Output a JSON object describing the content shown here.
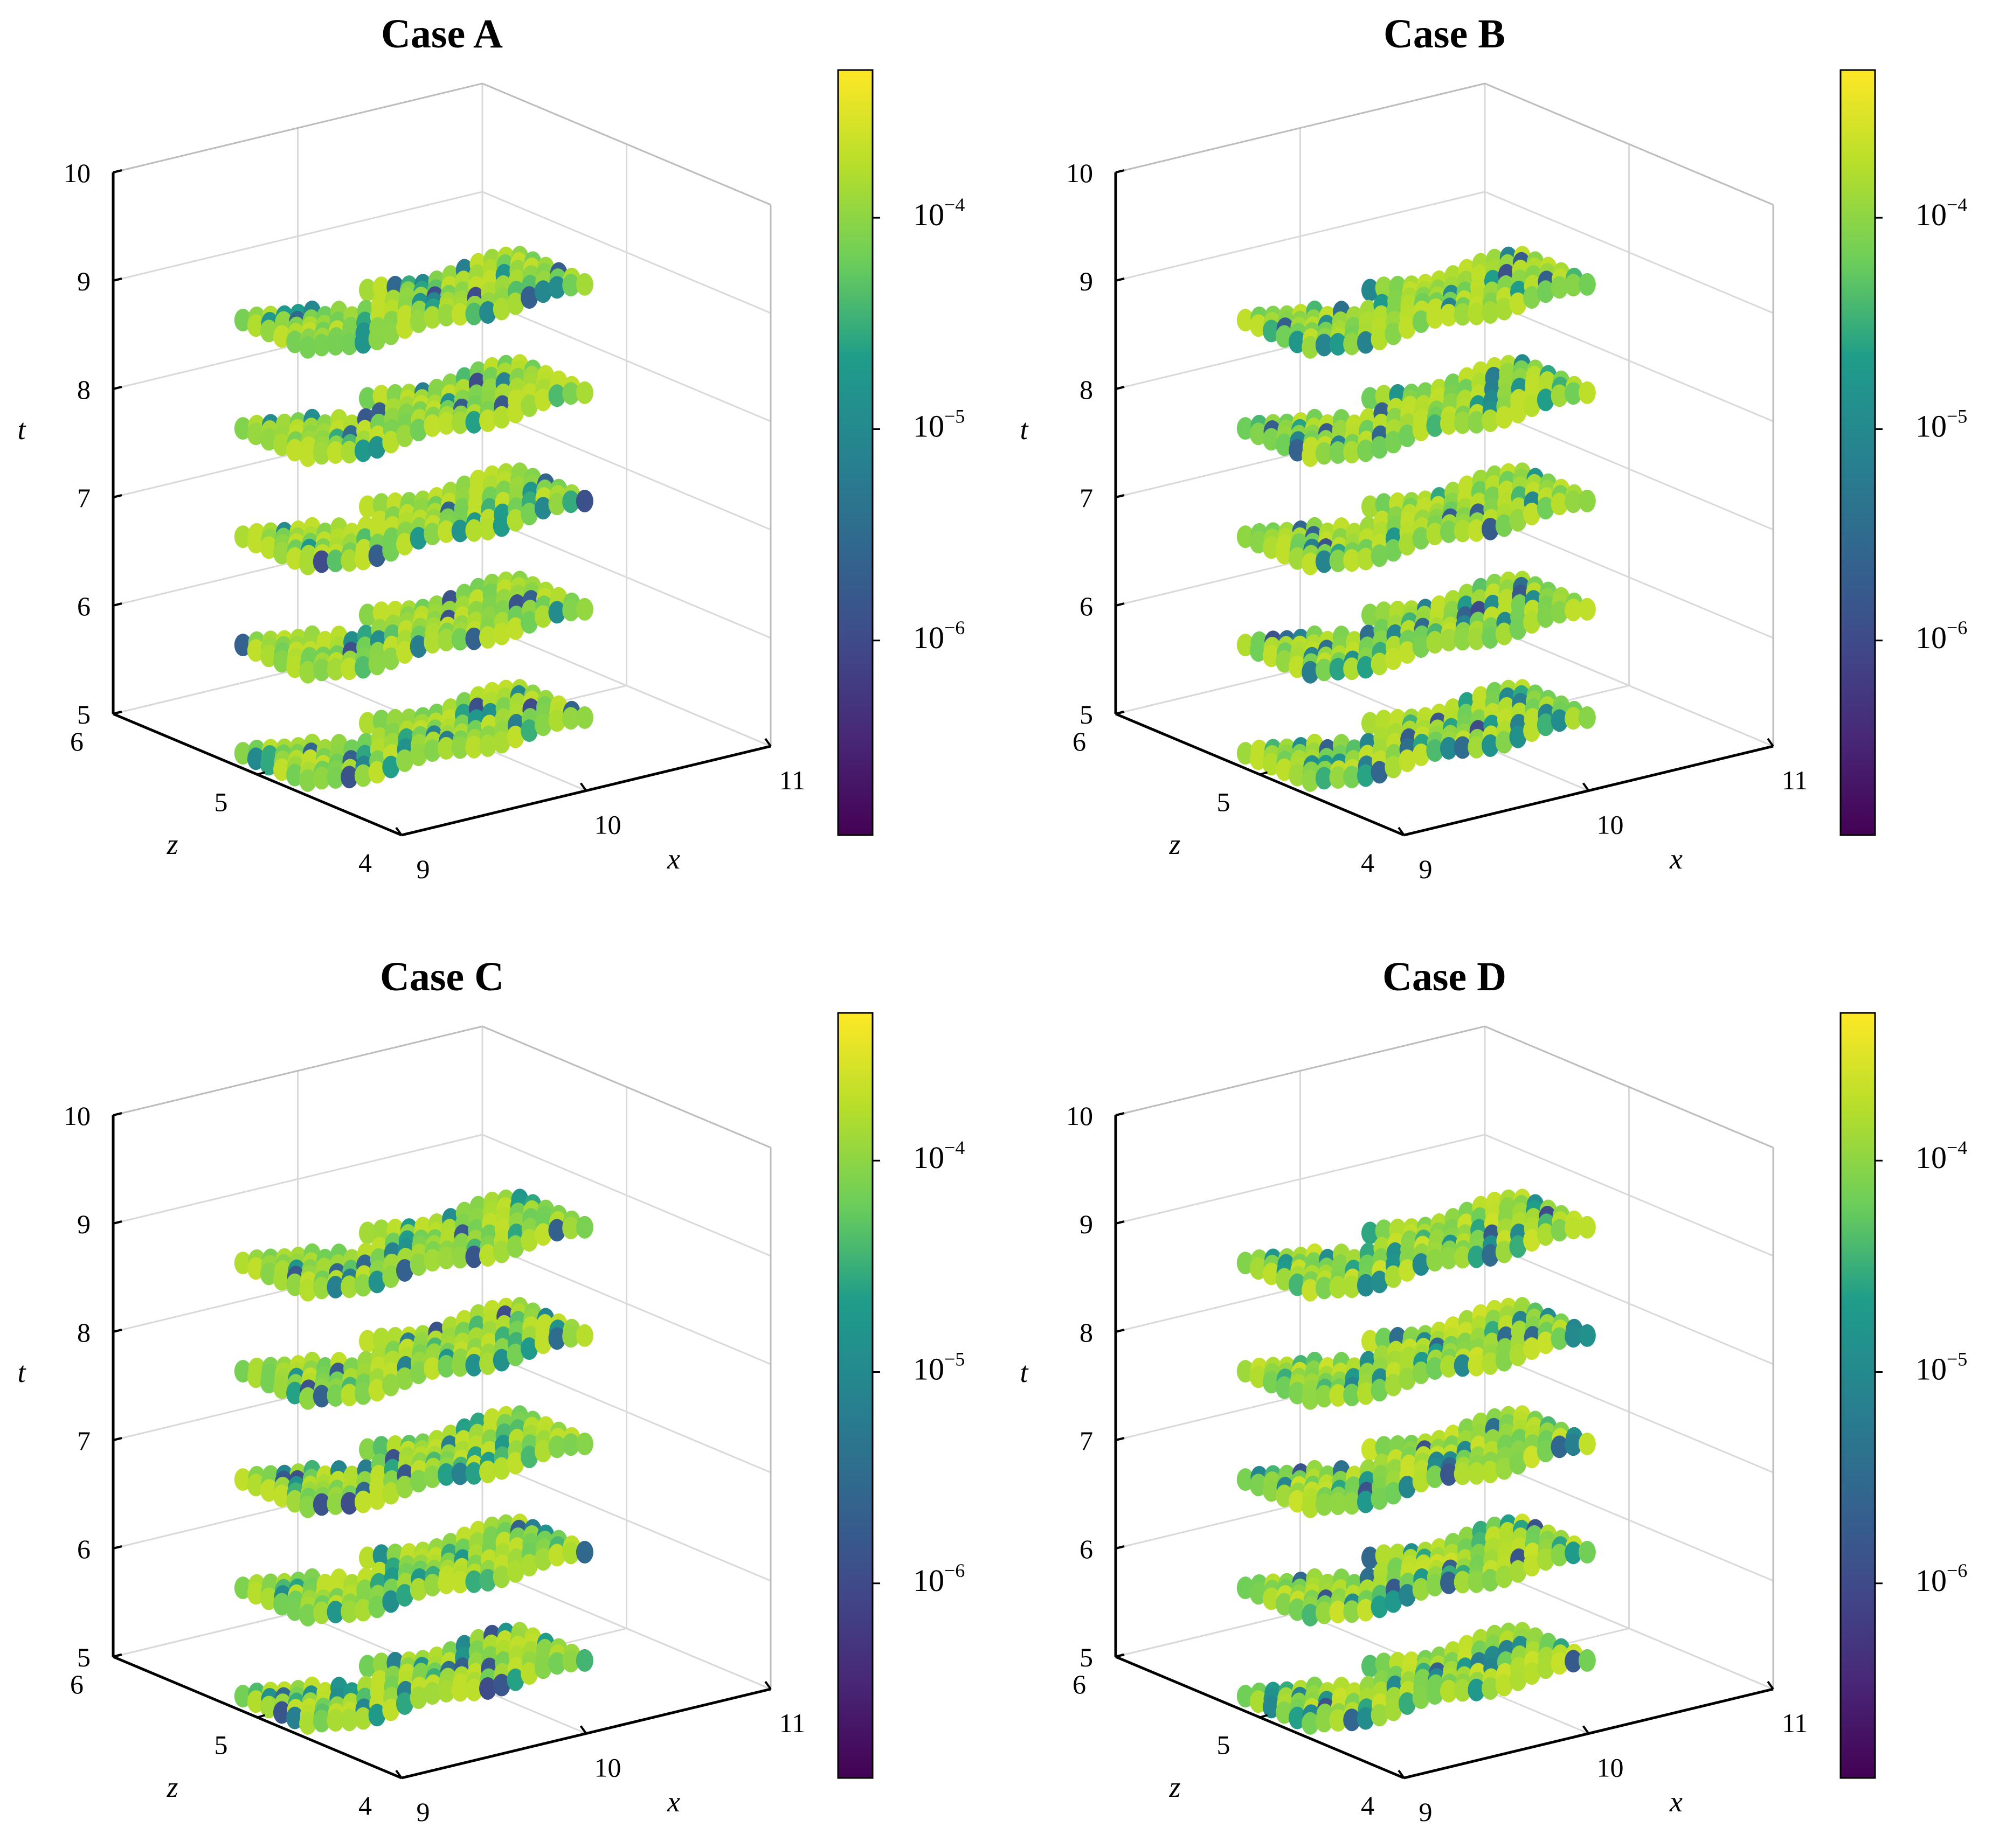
{
  "figure": {
    "colormap": "viridis",
    "colormap_stops": [
      "#440154",
      "#482777",
      "#3f4a8a",
      "#31678e",
      "#26838f",
      "#1f9d8a",
      "#6cce5a",
      "#b6de2b",
      "#fee825"
    ]
  },
  "chart_data": [
    {
      "type": "scatter",
      "title": "Case A",
      "xlabel": "x",
      "ylabel": "z",
      "zlabel": "t",
      "xlim": [
        9,
        11
      ],
      "ylim": [
        4,
        6
      ],
      "zlim": [
        5,
        10
      ],
      "x_ticks": [
        "9",
        "10",
        "11"
      ],
      "y_ticks": [
        "4",
        "5",
        "6"
      ],
      "z_ticks": [
        "5",
        "6",
        "7",
        "8",
        "9",
        "10"
      ],
      "t_slices": [
        5,
        6,
        7,
        8,
        9
      ],
      "colorbar": {
        "scale": "log",
        "range": [
          1.2e-07,
          0.0005
        ],
        "tick_bases": [
          "10",
          "10",
          "10"
        ],
        "tick_exponents": [
          "−6",
          "−5",
          "−4"
        ],
        "tick_values": [
          1e-06,
          1e-05,
          0.0001
        ]
      },
      "error_range": [
        1e-06,
        0.0002
      ],
      "seed": 11
    },
    {
      "type": "scatter",
      "title": "Case B",
      "xlabel": "x",
      "ylabel": "z",
      "zlabel": "t",
      "xlim": [
        9,
        11
      ],
      "ylim": [
        4,
        6
      ],
      "zlim": [
        5,
        10
      ],
      "x_ticks": [
        "9",
        "10",
        "11"
      ],
      "y_ticks": [
        "4",
        "5",
        "6"
      ],
      "z_ticks": [
        "5",
        "6",
        "7",
        "8",
        "9",
        "10"
      ],
      "t_slices": [
        5,
        6,
        7,
        8,
        9
      ],
      "colorbar": {
        "scale": "log",
        "range": [
          1.2e-07,
          0.0005
        ],
        "tick_bases": [
          "10",
          "10",
          "10"
        ],
        "tick_exponents": [
          "−6",
          "−5",
          "−4"
        ],
        "tick_values": [
          1e-06,
          1e-05,
          0.0001
        ]
      },
      "error_range": [
        1e-06,
        0.0002
      ],
      "seed": 23
    },
    {
      "type": "scatter",
      "title": "Case C",
      "xlabel": "x",
      "ylabel": "z",
      "zlabel": "t",
      "xlim": [
        9,
        11
      ],
      "ylim": [
        4,
        6
      ],
      "zlim": [
        5,
        10
      ],
      "x_ticks": [
        "9",
        "10",
        "11"
      ],
      "y_ticks": [
        "4",
        "5",
        "6"
      ],
      "z_ticks": [
        "5",
        "6",
        "7",
        "8",
        "9",
        "10"
      ],
      "t_slices": [
        5,
        6,
        7,
        8,
        9
      ],
      "colorbar": {
        "scale": "log",
        "range": [
          1.2e-07,
          0.0005
        ],
        "tick_bases": [
          "10",
          "10",
          "10"
        ],
        "tick_exponents": [
          "−6",
          "−5",
          "−4"
        ],
        "tick_values": [
          1e-06,
          1e-05,
          0.0001
        ]
      },
      "error_range": [
        1e-06,
        0.0002
      ],
      "seed": 37
    },
    {
      "type": "scatter",
      "title": "Case D",
      "xlabel": "x",
      "ylabel": "z",
      "zlabel": "t",
      "xlim": [
        9,
        11
      ],
      "ylim": [
        4,
        6
      ],
      "zlim": [
        5,
        10
      ],
      "x_ticks": [
        "9",
        "10",
        "11"
      ],
      "y_ticks": [
        "4",
        "5",
        "6"
      ],
      "z_ticks": [
        "5",
        "6",
        "7",
        "8",
        "9",
        "10"
      ],
      "t_slices": [
        5,
        6,
        7,
        8,
        9
      ],
      "colorbar": {
        "scale": "log",
        "range": [
          1.2e-07,
          0.0005
        ],
        "tick_bases": [
          "10",
          "10",
          "10"
        ],
        "tick_exponents": [
          "−6",
          "−5",
          "−4"
        ],
        "tick_values": [
          1e-06,
          1e-05,
          0.0001
        ]
      },
      "error_range": [
        1e-06,
        0.0004
      ],
      "seed": 53
    }
  ]
}
